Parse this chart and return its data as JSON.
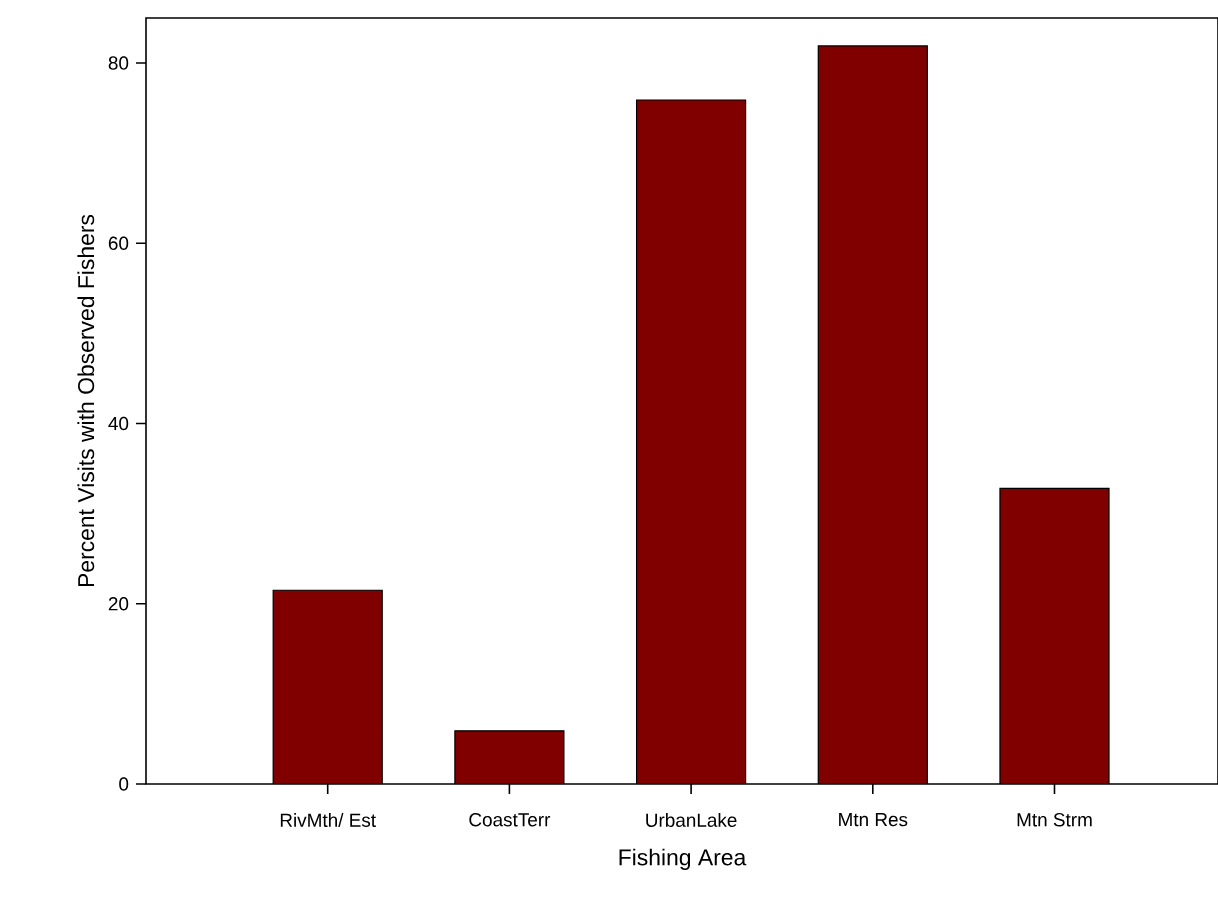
{
  "chart_data": {
    "type": "bar",
    "xlabel": "Fishing Area",
    "ylabel": "Percent Visits with Observed Fishers",
    "categories": [
      "RivMth/ Est",
      "CoastTerr",
      "UrbanLake",
      "Mtn Res",
      "Mtn Strm"
    ],
    "values": [
      21.5,
      5.9,
      75.9,
      81.9,
      32.8
    ],
    "color": "#800000",
    "ylim": [
      0,
      85
    ],
    "yticks": [
      0,
      20,
      40,
      60,
      80
    ]
  }
}
